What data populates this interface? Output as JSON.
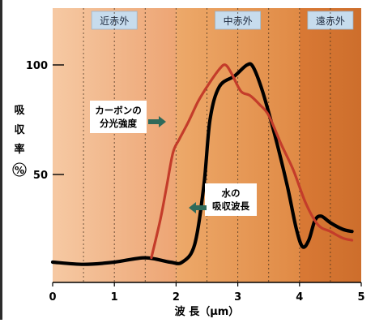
{
  "chart_data": {
    "type": "line",
    "title": "",
    "xlabel": "波 長（μm）",
    "ylabel": [
      "吸",
      "収",
      "率",
      "%"
    ],
    "xlim": [
      0,
      5
    ],
    "ylim": [
      0,
      120
    ],
    "x_ticks": [
      "0",
      "1",
      "2",
      "3",
      "4",
      "5"
    ],
    "y_ticks": [
      {
        "value": 100,
        "label": "100"
      },
      {
        "value": 50,
        "label": "50"
      }
    ],
    "grid": "dotted vertical lines at each 0.5 μm",
    "regions": [
      {
        "label": "近赤外",
        "x_start": 0,
        "x_end": 2.0,
        "color_from": "#f6c9a3",
        "color_to": "#eda574"
      },
      {
        "label": "中赤外",
        "x_start": 2.0,
        "x_end": 4.0,
        "color_from": "#eda96a",
        "color_to": "#e08a45"
      },
      {
        "label": "遠赤外",
        "x_start": 4.0,
        "x_end": 5.0,
        "color_from": "#d97935",
        "color_to": "#cd6e2c"
      }
    ],
    "series": [
      {
        "label": "水の吸収波長",
        "color": "#000000",
        "points": [
          [
            0.0,
            10
          ],
          [
            0.5,
            9
          ],
          [
            1.0,
            10
          ],
          [
            1.5,
            12
          ],
          [
            1.9,
            10
          ],
          [
            2.1,
            10
          ],
          [
            2.3,
            18
          ],
          [
            2.45,
            45
          ],
          [
            2.55,
            75
          ],
          [
            2.7,
            90
          ],
          [
            2.95,
            95
          ],
          [
            3.15,
            100
          ],
          [
            3.25,
            99
          ],
          [
            3.4,
            88
          ],
          [
            3.6,
            68
          ],
          [
            3.8,
            45
          ],
          [
            3.95,
            25
          ],
          [
            4.05,
            17
          ],
          [
            4.15,
            20
          ],
          [
            4.25,
            29
          ],
          [
            4.35,
            31
          ],
          [
            4.5,
            28
          ],
          [
            4.7,
            25
          ],
          [
            4.85,
            24
          ]
        ]
      },
      {
        "label": "カーボンの分光強度",
        "color": "#c43c2a",
        "points": [
          [
            1.6,
            12
          ],
          [
            1.75,
            30
          ],
          [
            1.85,
            45
          ],
          [
            1.95,
            60
          ],
          [
            2.05,
            66
          ],
          [
            2.2,
            74
          ],
          [
            2.35,
            83
          ],
          [
            2.5,
            90
          ],
          [
            2.7,
            98
          ],
          [
            2.8,
            100
          ],
          [
            2.9,
            96
          ],
          [
            3.05,
            88
          ],
          [
            3.2,
            86
          ],
          [
            3.35,
            82
          ],
          [
            3.5,
            77
          ],
          [
            3.7,
            64
          ],
          [
            3.9,
            52
          ],
          [
            4.1,
            37
          ],
          [
            4.3,
            27
          ],
          [
            4.5,
            24
          ],
          [
            4.7,
            21
          ],
          [
            4.85,
            20
          ]
        ]
      }
    ],
    "annotations": [
      {
        "text": [
          "カーボンの",
          "分光強度"
        ],
        "target": "カーボンの分光強度"
      },
      {
        "text": [
          "水の",
          "吸収波長"
        ],
        "target": "水の吸収波長"
      }
    ]
  }
}
